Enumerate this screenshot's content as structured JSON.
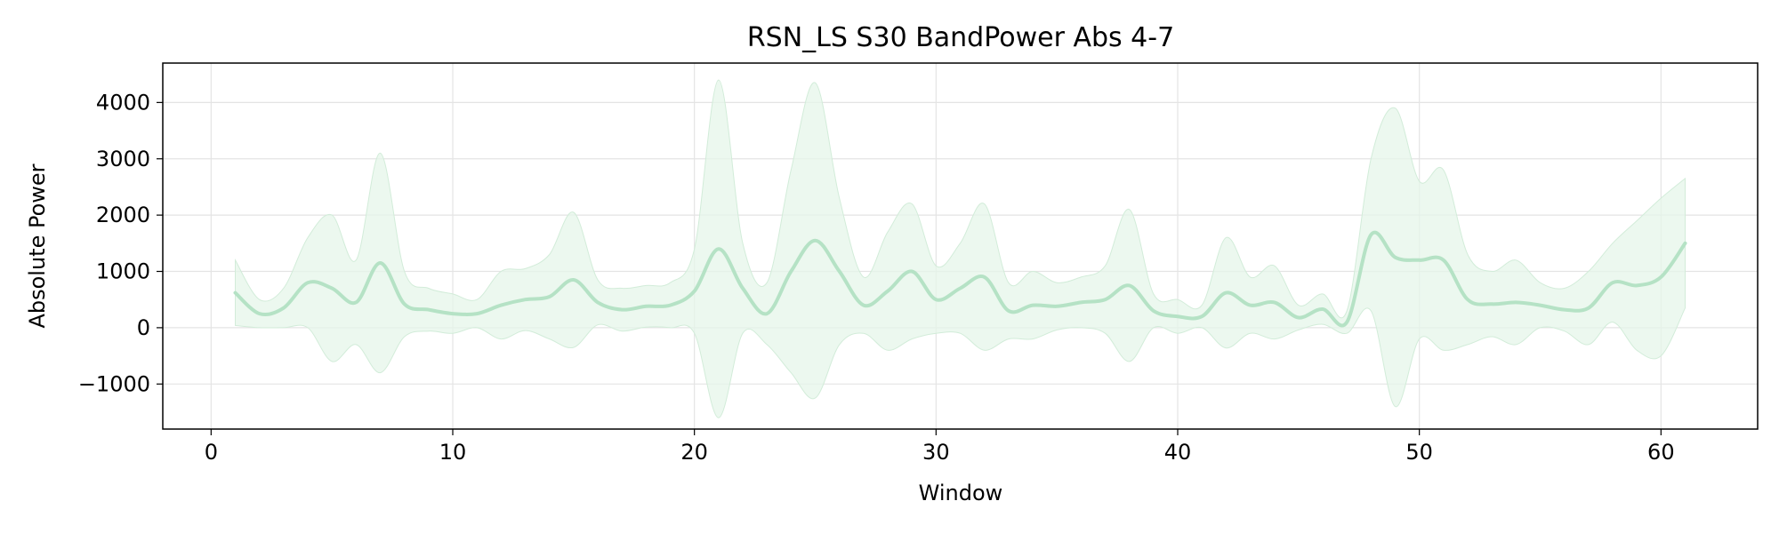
{
  "chart_data": {
    "type": "line",
    "title": "RSN_LS S30 BandPower Abs 4-7",
    "xlabel": "Window",
    "ylabel": "Absolute Power",
    "xlim": [
      -2,
      64
    ],
    "ylim": [
      -1800,
      4700
    ],
    "xticks": [
      0,
      10,
      20,
      30,
      40,
      50,
      60
    ],
    "yticks": [
      -1000,
      0,
      1000,
      2000,
      3000,
      4000
    ],
    "ytick_labels": [
      "−1000",
      "0",
      "1000",
      "2000",
      "3000",
      "4000"
    ],
    "grid": true,
    "colors": {
      "line": "#b5e2c5",
      "band": "#e6f5ea"
    },
    "series": [
      {
        "x": [
          1,
          2,
          3,
          4,
          5,
          6,
          7,
          8,
          9,
          10,
          11,
          12,
          13,
          14,
          15,
          16,
          17,
          18,
          19,
          20,
          21,
          22,
          23,
          24,
          25,
          26,
          27,
          28,
          29,
          30,
          31,
          32,
          33,
          34,
          35,
          36,
          37,
          38,
          39,
          40,
          41,
          42,
          43,
          44,
          45,
          46,
          47,
          48,
          49,
          50,
          51,
          52,
          53,
          54,
          55,
          56,
          57,
          58,
          59,
          60,
          61
        ],
        "mean": [
          620,
          250,
          350,
          800,
          700,
          450,
          1150,
          420,
          320,
          250,
          250,
          400,
          500,
          550,
          850,
          450,
          320,
          380,
          400,
          650,
          1400,
          700,
          250,
          1000,
          1550,
          1000,
          400,
          650,
          1000,
          500,
          700,
          900,
          300,
          400,
          380,
          450,
          500,
          750,
          300,
          200,
          200,
          620,
          400,
          450,
          180,
          330,
          100,
          1650,
          1250,
          1200,
          1200,
          500,
          420,
          450,
          400,
          320,
          350,
          800,
          750,
          900,
          1500
        ],
        "upper": [
          1200,
          500,
          700,
          1600,
          2000,
          1200,
          3100,
          1000,
          700,
          600,
          500,
          1000,
          1050,
          1300,
          2050,
          850,
          700,
          750,
          800,
          1400,
          4400,
          1500,
          800,
          2800,
          4350,
          2300,
          900,
          1700,
          2200,
          1100,
          1500,
          2200,
          800,
          1000,
          800,
          900,
          1100,
          2100,
          600,
          500,
          400,
          1600,
          900,
          1100,
          400,
          600,
          300,
          3000,
          3900,
          2600,
          2800,
          1300,
          1000,
          1200,
          800,
          700,
          1000,
          1500,
          1900,
          2300,
          2650
        ]
      }
    ]
  }
}
